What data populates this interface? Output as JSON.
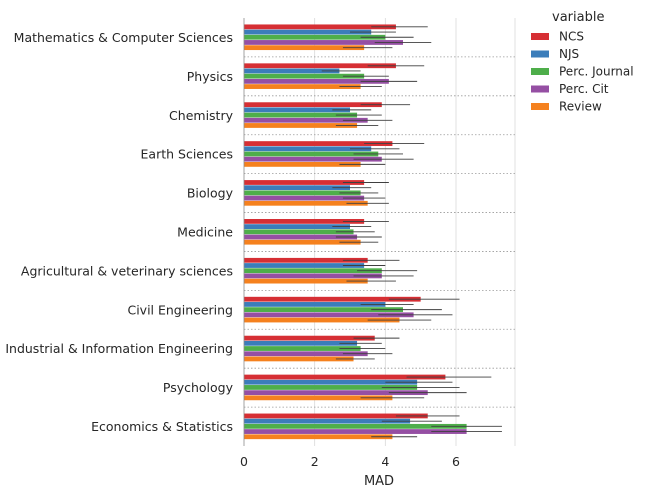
{
  "chart_data": {
    "type": "bar",
    "orientation": "horizontal",
    "title": "",
    "xlabel": "MAD",
    "ylabel": "",
    "xlim": [
      0,
      7.5
    ],
    "xticks": [
      0,
      2,
      4,
      6
    ],
    "grid": "vertical gridlines, dotted category separators",
    "legend_title": "variable",
    "legend_position": "upper-right-outside",
    "categories": [
      "Mathematics & Computer Sciences",
      "Physics",
      "Chemistry",
      "Earth Sciences",
      "Biology",
      "Medicine",
      "Agricultural & veterinary sciences",
      "Civil Engineering",
      "Industrial & Information Engineering",
      "Psychology",
      "Economics & Statistics"
    ],
    "series": [
      {
        "name": "NCS",
        "color": "#d62f34",
        "values": [
          4.3,
          4.3,
          3.9,
          4.2,
          3.4,
          3.4,
          3.5,
          5.0,
          3.7,
          5.7,
          5.2
        ],
        "ci": [
          [
            3.6,
            5.2
          ],
          [
            3.5,
            5.1
          ],
          [
            3.3,
            4.7
          ],
          [
            3.4,
            5.1
          ],
          [
            2.8,
            4.1
          ],
          [
            2.8,
            4.1
          ],
          [
            2.8,
            4.4
          ],
          [
            4.1,
            6.1
          ],
          [
            3.1,
            4.4
          ],
          [
            4.6,
            7.0
          ],
          [
            4.3,
            6.1
          ]
        ]
      },
      {
        "name": "NJS",
        "color": "#3b7dba",
        "values": [
          3.6,
          2.7,
          3.0,
          3.6,
          3.0,
          3.0,
          3.4,
          4.0,
          3.2,
          4.9,
          4.7
        ],
        "ci": [
          [
            3.0,
            4.3
          ],
          [
            2.2,
            3.3
          ],
          [
            2.5,
            3.6
          ],
          [
            3.0,
            4.4
          ],
          [
            2.5,
            3.6
          ],
          [
            2.5,
            3.6
          ],
          [
            2.8,
            4.0
          ],
          [
            3.3,
            4.8
          ],
          [
            2.7,
            3.9
          ],
          [
            4.0,
            5.9
          ],
          [
            3.9,
            5.6
          ]
        ]
      },
      {
        "name": "Perc. Journal",
        "color": "#4eae4a",
        "values": [
          4.0,
          3.4,
          3.2,
          3.8,
          3.3,
          3.1,
          3.9,
          4.5,
          3.3,
          4.9,
          6.3
        ],
        "ci": [
          [
            3.3,
            4.8
          ],
          [
            2.8,
            4.1
          ],
          [
            2.6,
            3.9
          ],
          [
            3.1,
            4.5
          ],
          [
            2.7,
            3.8
          ],
          [
            2.6,
            3.7
          ],
          [
            3.2,
            4.9
          ],
          [
            3.6,
            5.6
          ],
          [
            2.7,
            4.0
          ],
          [
            3.9,
            6.1
          ],
          [
            5.3,
            7.3
          ]
        ]
      },
      {
        "name": "Perc. Cit",
        "color": "#954fa3",
        "values": [
          4.5,
          4.1,
          3.5,
          3.9,
          3.4,
          3.2,
          3.9,
          4.8,
          3.5,
          5.2,
          6.3
        ],
        "ci": [
          [
            3.7,
            5.3
          ],
          [
            3.3,
            4.9
          ],
          [
            2.8,
            4.2
          ],
          [
            3.1,
            4.8
          ],
          [
            2.8,
            4.0
          ],
          [
            2.6,
            3.9
          ],
          [
            3.1,
            4.8
          ],
          [
            3.8,
            5.9
          ],
          [
            2.8,
            4.2
          ],
          [
            4.1,
            6.3
          ],
          [
            5.3,
            7.3
          ]
        ]
      },
      {
        "name": "Review",
        "color": "#f5811e",
        "values": [
          3.4,
          3.3,
          3.2,
          3.3,
          3.5,
          3.3,
          3.5,
          4.4,
          3.1,
          4.2,
          4.2
        ],
        "ci": [
          [
            2.8,
            4.2
          ],
          [
            2.7,
            3.9
          ],
          [
            2.6,
            3.8
          ],
          [
            2.7,
            4.0
          ],
          [
            2.9,
            4.1
          ],
          [
            2.7,
            3.8
          ],
          [
            2.9,
            4.3
          ],
          [
            3.5,
            5.3
          ],
          [
            2.6,
            3.7
          ],
          [
            3.3,
            5.1
          ],
          [
            3.6,
            4.9
          ]
        ]
      }
    ]
  }
}
